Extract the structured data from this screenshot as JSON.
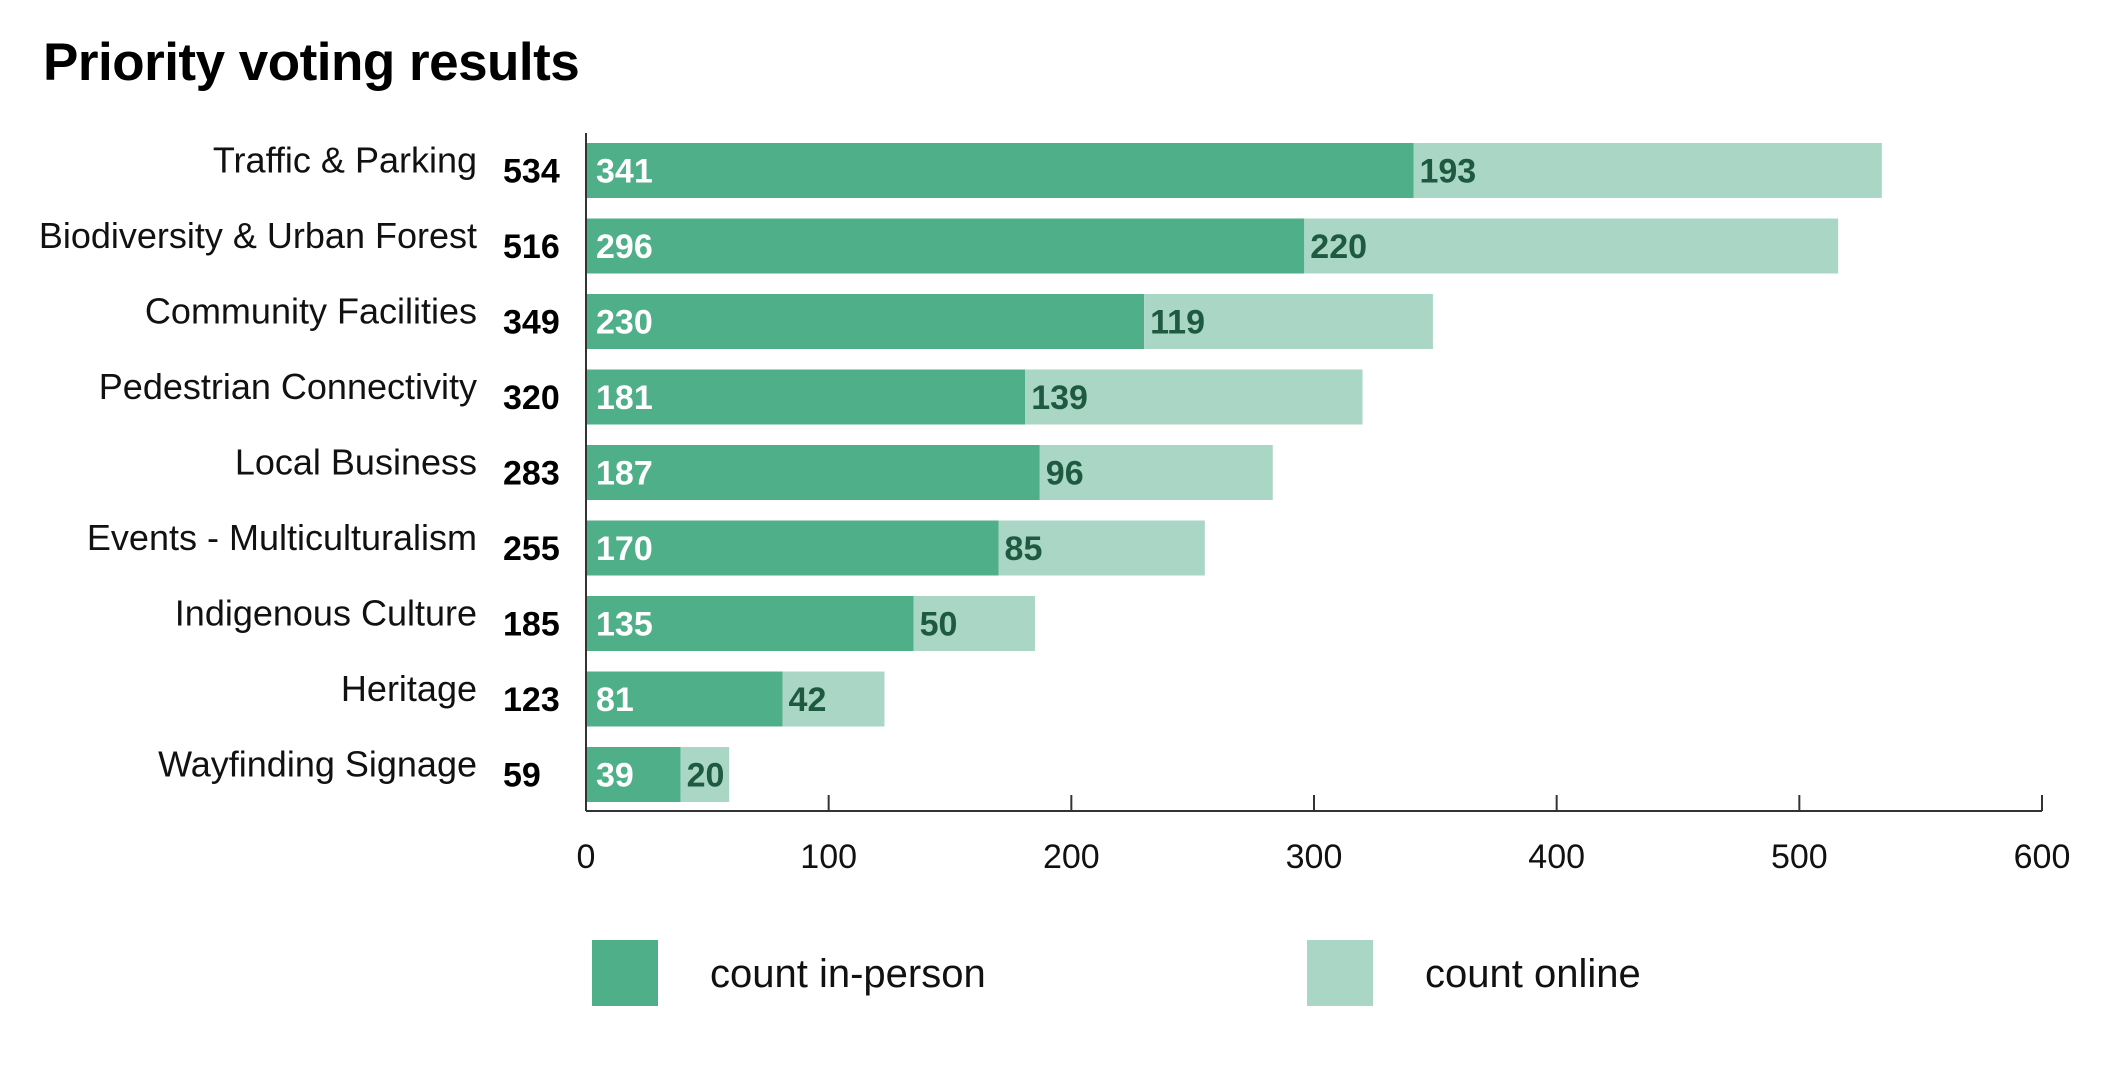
{
  "chart_data": {
    "type": "bar",
    "orientation": "horizontal",
    "stacked": true,
    "title": "Priority voting results",
    "categories": [
      "Traffic & Parking",
      "Biodiversity & Urban Forest",
      "Community Facilities",
      "Pedestrian Connectivity",
      "Local Business",
      "Events - Multiculturalism",
      "Indigenous Culture",
      "Heritage",
      "Wayfinding Signage"
    ],
    "totals": [
      534,
      516,
      349,
      320,
      283,
      255,
      185,
      123,
      59
    ],
    "series": [
      {
        "name": "count in-person",
        "color": "#4faf88",
        "values": [
          341,
          296,
          230,
          181,
          187,
          170,
          135,
          81,
          39
        ]
      },
      {
        "name": "count online",
        "color": "#aad6c5",
        "values": [
          193,
          220,
          119,
          139,
          96,
          85,
          50,
          42,
          20
        ]
      }
    ],
    "xlim": [
      0,
      600
    ],
    "xticks": [
      0,
      100,
      200,
      300,
      400,
      500,
      600
    ],
    "xlabel": "",
    "ylabel": "",
    "grid": false,
    "legend_position": "bottom",
    "label_colors": {
      "in_person_text": "#ffffff",
      "online_text": "#1e5a42"
    }
  }
}
